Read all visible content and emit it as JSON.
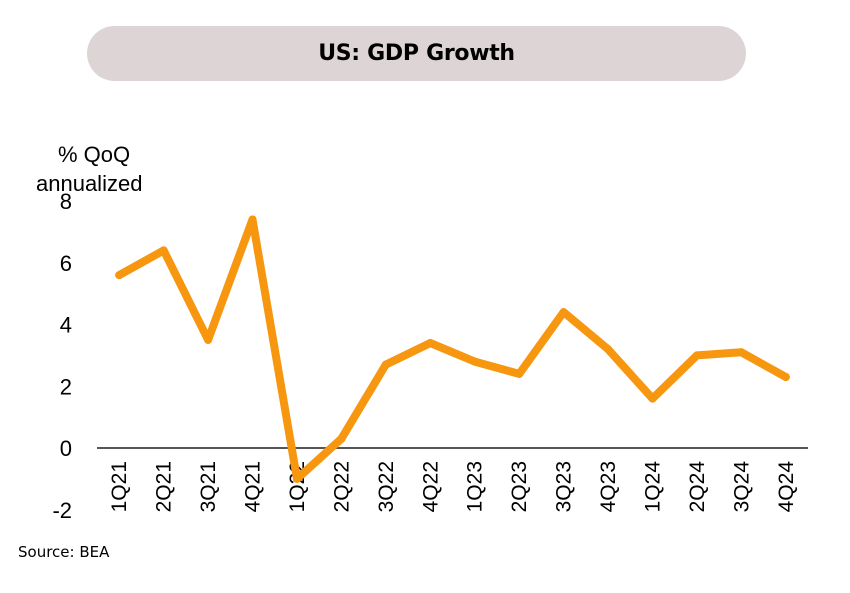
{
  "chart_data": {
    "type": "line",
    "title": "US: GDP Growth",
    "ylabel": "% QoQ annualized",
    "ylabel_lines": [
      "% QoQ",
      "annualized"
    ],
    "xlabel": "",
    "source": "Source: BEA",
    "ylim": [
      -2,
      8
    ],
    "yticks": [
      -2,
      0,
      2,
      4,
      6,
      8
    ],
    "grid": false,
    "legend": "none",
    "line_color": "#f7960f",
    "categories": [
      "1Q21",
      "2Q21",
      "3Q21",
      "4Q21",
      "1Q22",
      "2Q22",
      "3Q22",
      "4Q22",
      "1Q23",
      "2Q23",
      "3Q23",
      "4Q23",
      "1Q24",
      "2Q24",
      "3Q24",
      "4Q24"
    ],
    "series": [
      {
        "name": "US GDP growth",
        "values": [
          5.6,
          6.4,
          3.5,
          7.4,
          -1.0,
          0.3,
          2.7,
          3.4,
          2.8,
          2.4,
          4.4,
          3.2,
          1.6,
          3.0,
          3.1,
          2.3
        ]
      }
    ]
  }
}
